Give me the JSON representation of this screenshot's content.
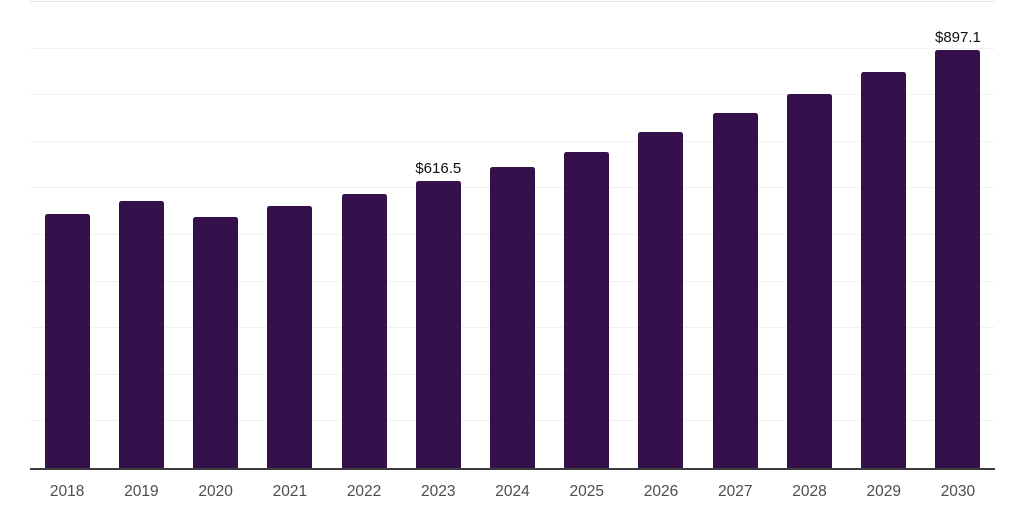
{
  "chart_data": {
    "type": "bar",
    "title": "",
    "xlabel": "",
    "ylabel": "",
    "categories": [
      "2018",
      "2019",
      "2020",
      "2021",
      "2022",
      "2023",
      "2024",
      "2025",
      "2026",
      "2027",
      "2028",
      "2029",
      "2030"
    ],
    "values": [
      546,
      572,
      538,
      562,
      589,
      616.5,
      646,
      679,
      722,
      762,
      802,
      849,
      897.1
    ],
    "annotations": [
      {
        "index": 5,
        "text": "$616.5"
      },
      {
        "index": 12,
        "text": "$897.1"
      }
    ],
    "ylim": [
      0,
      1000
    ],
    "grid_step": 100,
    "grid": true,
    "legend": "none",
    "y_axis_labels_visible": false,
    "colors": {
      "bar": "#35114c",
      "grid": "#f2f2f2",
      "gridtop": "#e4e4e4",
      "axis": "#3c3c3c",
      "tick": "#4d4d4d",
      "vlabel": "#0f0f0f",
      "background": "#ffffff"
    }
  }
}
